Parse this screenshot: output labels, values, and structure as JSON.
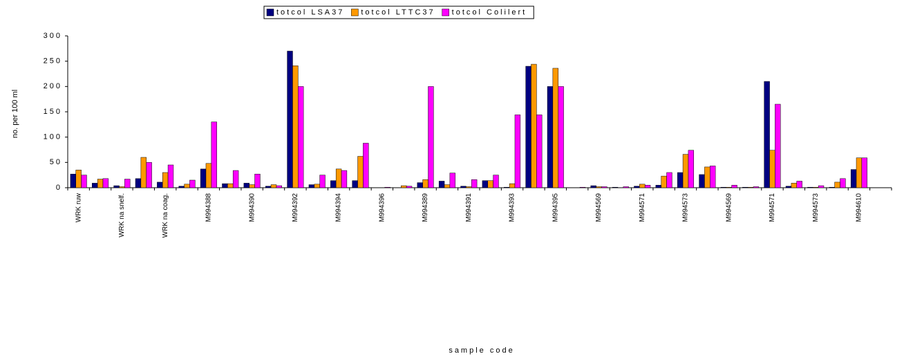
{
  "chart_data": {
    "type": "bar",
    "x_label": "sample code",
    "y_label": "no. per 100 ml",
    "categories": [
      "WRK ruw",
      null,
      "WRK na snelf.",
      null,
      "WRK na coag.",
      null,
      "M994388",
      null,
      "M994390",
      null,
      "M994392",
      null,
      "M994394",
      null,
      "M994396",
      null,
      "M994389",
      null,
      "M994391",
      null,
      "M994393",
      null,
      "M994395",
      null,
      "M994569",
      null,
      "M994571",
      null,
      "M994573",
      null,
      "M994569",
      null,
      "M994571",
      null,
      "M994573",
      null,
      "M994610",
      null
    ],
    "series": [
      {
        "name": "totcol LSA37",
        "color": "#000080",
        "values": [
          27,
          9,
          4,
          18,
          11,
          3,
          37,
          8,
          9,
          3,
          270,
          6,
          14,
          14,
          0,
          0,
          10,
          13,
          3,
          14,
          1,
          240,
          200,
          0,
          4,
          1,
          3,
          5,
          30,
          26,
          1,
          1,
          210,
          3,
          1,
          1,
          36,
          null
        ]
      },
      {
        "name": "totcol LTTC37",
        "color": "#FF9900",
        "values": [
          35,
          17,
          2,
          60,
          30,
          7,
          48,
          8,
          6,
          6,
          241,
          7,
          37,
          62,
          0,
          4,
          16,
          6,
          2,
          14,
          8,
          244,
          236,
          0,
          2,
          0,
          7,
          23,
          66,
          41,
          1,
          1,
          74,
          9,
          1,
          11,
          59,
          null
        ]
      },
      {
        "name": "totcol Colilert",
        "color": "#FF00FF",
        "values": [
          25,
          18,
          17,
          50,
          45,
          15,
          130,
          34,
          27,
          4,
          200,
          25,
          34,
          88,
          1,
          3,
          200,
          29,
          16,
          25,
          144,
          144,
          200,
          1,
          2,
          2,
          5,
          30,
          74,
          43,
          5,
          2,
          165,
          13,
          4,
          18,
          59,
          null
        ]
      }
    ],
    "ylim": [
      0,
      300
    ],
    "yticks": [
      0,
      50,
      100,
      150,
      200,
      250,
      300
    ],
    "grid": false,
    "legend": "top"
  }
}
